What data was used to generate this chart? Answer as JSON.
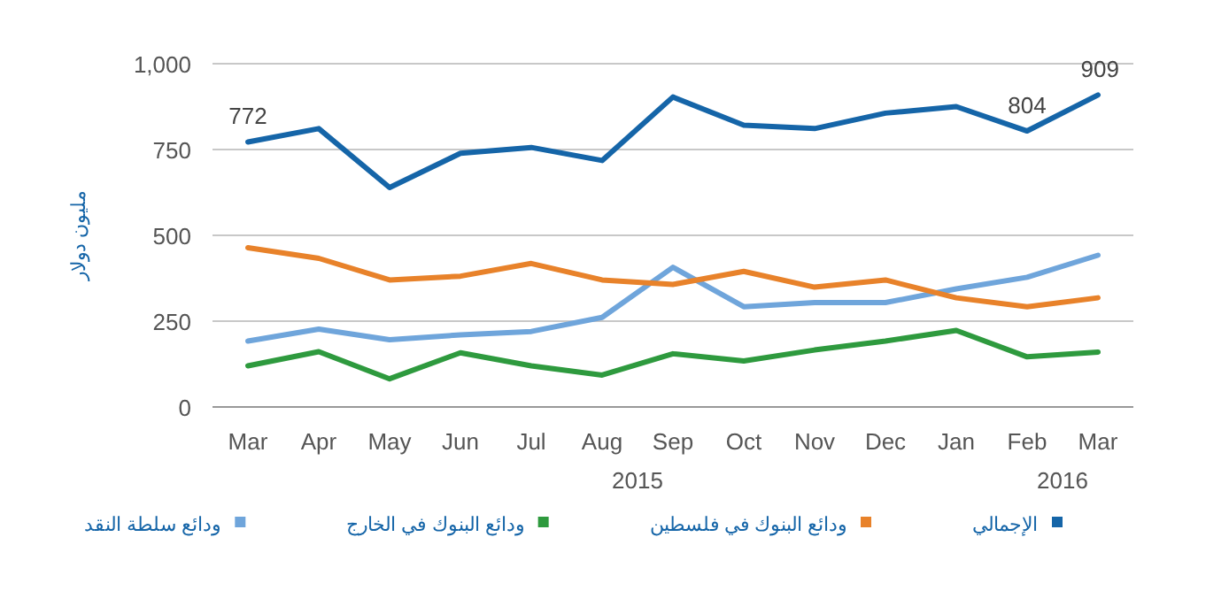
{
  "chart_data": {
    "type": "line",
    "categories": [
      "Mar",
      "Apr",
      "May",
      "Jun",
      "Jul",
      "Aug",
      "Sep",
      "Oct",
      "Nov",
      "Dec",
      "Jan",
      "Feb",
      "Mar"
    ],
    "ylabel": "مليون دولار",
    "ylim": [
      0,
      1000
    ],
    "yticks": [
      0,
      250,
      500,
      750,
      {
        "value": 1000,
        "label": "1,000"
      }
    ],
    "grid": "y",
    "legend": "bottom",
    "annotations": [
      "2015",
      "2016"
    ],
    "series": [
      {
        "name": "الإجمالي",
        "color": "#1565a8",
        "values": [
          772,
          811,
          639,
          739,
          756,
          718,
          903,
          821,
          811,
          856,
          875,
          804,
          909
        ],
        "value_labels": [
          "772",
          null,
          null,
          null,
          null,
          null,
          null,
          null,
          null,
          null,
          null,
          "804",
          "909"
        ]
      },
      {
        "name": "ودائع البنوك في فلسطين",
        "color": "#e8822a",
        "values": [
          464,
          433,
          370,
          381,
          418,
          370,
          357,
          395,
          349,
          370,
          318,
          292,
          318
        ]
      },
      {
        "name": "ودائع البنوك في الخارج",
        "color": "#2e9a3e",
        "values": [
          120,
          161,
          82,
          158,
          120,
          93,
          155,
          134,
          166,
          192,
          223,
          146,
          160
        ]
      },
      {
        "name": "ودائع سلطة النقد",
        "color": "#6fa5db",
        "values": [
          192,
          227,
          196,
          210,
          220,
          261,
          407,
          292,
          304,
          304,
          344,
          378,
          442
        ]
      }
    ]
  }
}
